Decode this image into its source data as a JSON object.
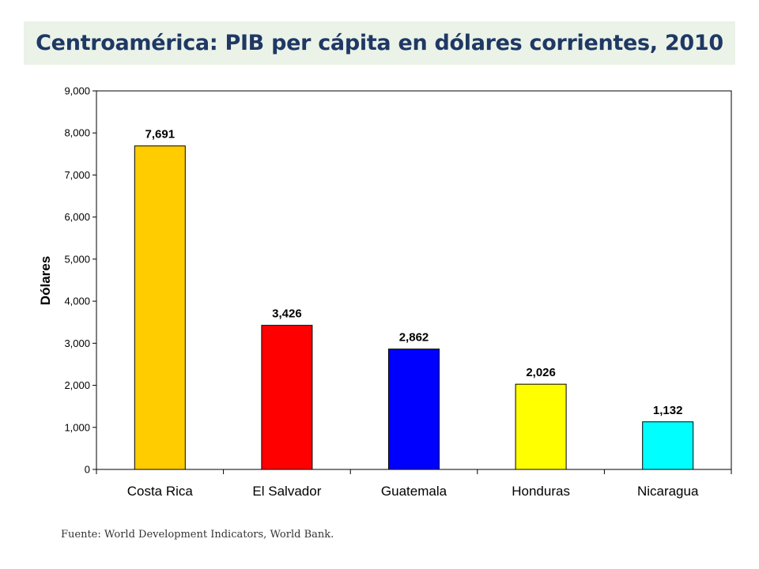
{
  "slide": {
    "title": "Centroamérica: PIB per cápita en dólares corrientes, 2010",
    "source": "Fuente: World Development Indicators, World Bank."
  },
  "chart_data": {
    "type": "bar",
    "title": "",
    "xlabel": "",
    "ylabel": "Dólares",
    "ylim": [
      0,
      9000
    ],
    "yticks": [
      0,
      1000,
      2000,
      3000,
      4000,
      5000,
      6000,
      7000,
      8000,
      9000
    ],
    "ytick_labels": [
      "0",
      "1,000",
      "2,000",
      "3,000",
      "4,000",
      "5,000",
      "6,000",
      "7,000",
      "8,000",
      "9,000"
    ],
    "grid": false,
    "legend": "none",
    "categories": [
      "Costa Rica",
      "El Salvador",
      "Guatemala",
      "Honduras",
      "Nicaragua"
    ],
    "values": [
      7691,
      3426,
      2862,
      2026,
      1132
    ],
    "value_labels": [
      "7,691",
      "3,426",
      "2,862",
      "2,026",
      "1,132"
    ],
    "colors": [
      "#ffcc00",
      "#ff0000",
      "#0000ff",
      "#ffff00",
      "#00ffff"
    ]
  }
}
